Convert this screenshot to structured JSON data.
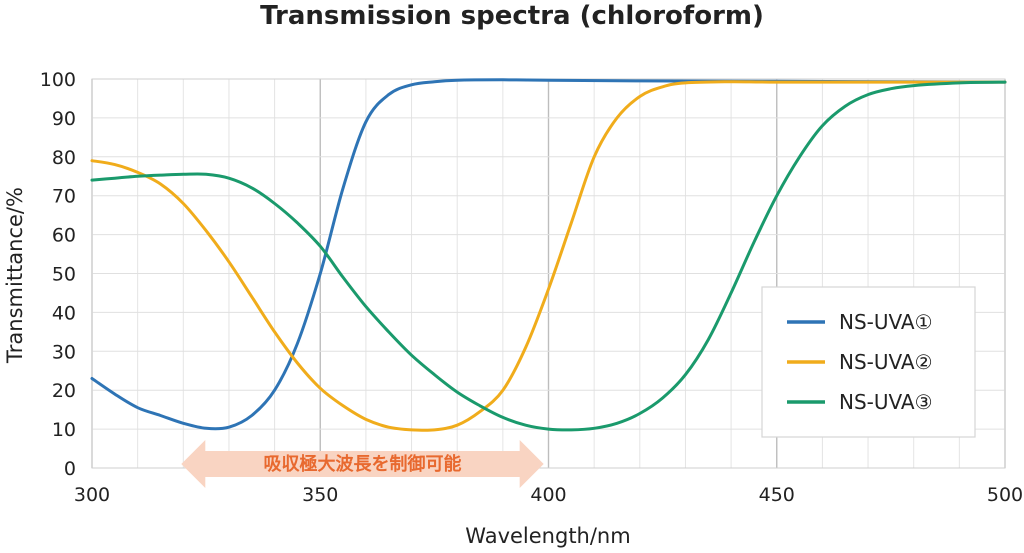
{
  "chart_data": {
    "type": "line",
    "title": "Transmission spectra (chloroform)",
    "xlabel": "Wavelength/nm",
    "ylabel": "Transmittance/%",
    "xlim": [
      300,
      500
    ],
    "ylim": [
      0,
      100
    ],
    "x_ticks": [
      "300",
      "350",
      "400",
      "450",
      "500"
    ],
    "y_ticks": [
      "0",
      "10",
      "20",
      "30",
      "40",
      "50",
      "60",
      "70",
      "80",
      "90",
      "100"
    ],
    "grid": true,
    "legend_position": "right",
    "annotation": "吸収極大波長を制御可能",
    "annotation_range": [
      320,
      395
    ],
    "series": [
      {
        "name": "NS-UVA①",
        "color": "#2e74b5",
        "x": [
          300,
          305,
          310,
          315,
          320,
          325,
          330,
          335,
          340,
          345,
          350,
          355,
          360,
          365,
          370,
          375,
          380,
          390,
          400,
          420,
          450,
          475,
          500
        ],
        "y": [
          23,
          19,
          15.5,
          13.5,
          11.5,
          10.2,
          10.5,
          13.5,
          20,
          32,
          50,
          72,
          89,
          96,
          98.5,
          99.3,
          99.7,
          99.8,
          99.7,
          99.5,
          99.4,
          99.3,
          99.2
        ]
      },
      {
        "name": "NS-UVA②",
        "color": "#f0ac1b",
        "x": [
          300,
          305,
          310,
          315,
          320,
          325,
          330,
          335,
          340,
          345,
          350,
          355,
          360,
          365,
          370,
          375,
          380,
          385,
          390,
          395,
          400,
          405,
          410,
          415,
          420,
          425,
          430,
          440,
          450,
          475,
          500
        ],
        "y": [
          79,
          78,
          76,
          73,
          68,
          61,
          53,
          44,
          35,
          27,
          20.5,
          16,
          12.5,
          10.5,
          9.8,
          9.8,
          11,
          14.5,
          20,
          31,
          46,
          63,
          80,
          90,
          95.5,
          98,
          99,
          99.3,
          99.2,
          99.2,
          99.2
        ]
      },
      {
        "name": "NS-UVA③",
        "color": "#1a9a6c",
        "x": [
          300,
          305,
          310,
          315,
          320,
          325,
          330,
          335,
          340,
          345,
          350,
          355,
          360,
          365,
          370,
          375,
          380,
          385,
          390,
          395,
          400,
          405,
          410,
          415,
          420,
          425,
          430,
          435,
          440,
          445,
          450,
          455,
          460,
          465,
          470,
          475,
          480,
          490,
          500
        ],
        "y": [
          74,
          74.5,
          75,
          75.3,
          75.5,
          75.5,
          74.5,
          72,
          68,
          63,
          57,
          49,
          41.5,
          35,
          29,
          24,
          19.5,
          16,
          13,
          11,
          10,
          9.8,
          10.2,
          11.5,
          14,
          18,
          24,
          33,
          45,
          58,
          70,
          80,
          88,
          93,
          96,
          97.5,
          98.3,
          99,
          99.2
        ]
      }
    ]
  }
}
